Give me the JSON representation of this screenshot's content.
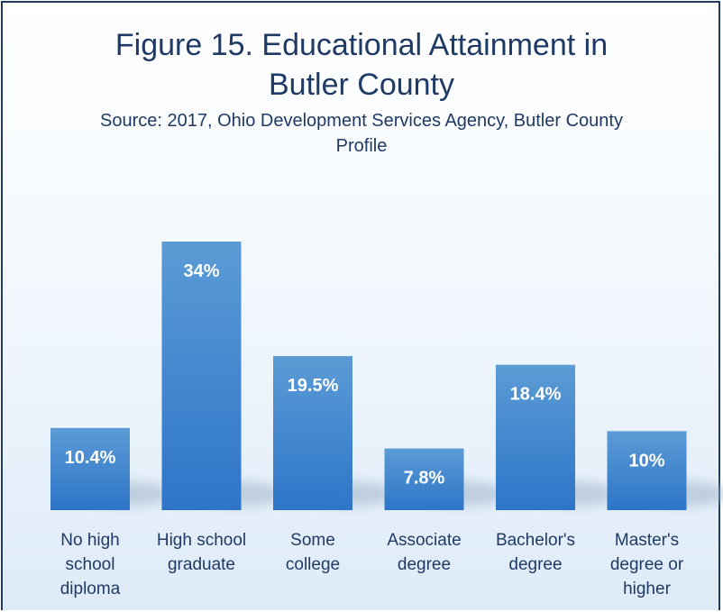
{
  "chart_data": {
    "type": "bar",
    "title": "Figure 15. Educational Attainment in Butler County",
    "title_lines": [
      "Figure 15. Educational Attainment in",
      "Butler County"
    ],
    "subtitle": "Source: 2017, Ohio Development Services Agency, Butler County Profile",
    "categories": [
      "No high school diploma",
      "High school graduate",
      "Some college",
      "Associate degree",
      "Bachelor's degree",
      "Master's degree or higher"
    ],
    "category_lines": [
      [
        "No high",
        "school",
        "diploma"
      ],
      [
        "High school",
        "graduate"
      ],
      [
        "Some",
        "college"
      ],
      [
        "Associate",
        "degree"
      ],
      [
        "Bachelor's",
        "degree"
      ],
      [
        "Master's",
        "degree or",
        "higher"
      ]
    ],
    "values": [
      10.4,
      34,
      19.5,
      7.8,
      18.4,
      10
    ],
    "data_labels": [
      "10.4%",
      "34%",
      "19.5%",
      "7.8%",
      "18.4%",
      "10%"
    ],
    "xlabel": "",
    "ylabel": "",
    "ylim": [
      0,
      40
    ],
    "grid": false,
    "legend": "none",
    "colors": {
      "bar_top": "#5b9bd5",
      "bar_bottom": "#2e75c8",
      "text": "#1f3a64",
      "border": "#1f3a64"
    }
  }
}
